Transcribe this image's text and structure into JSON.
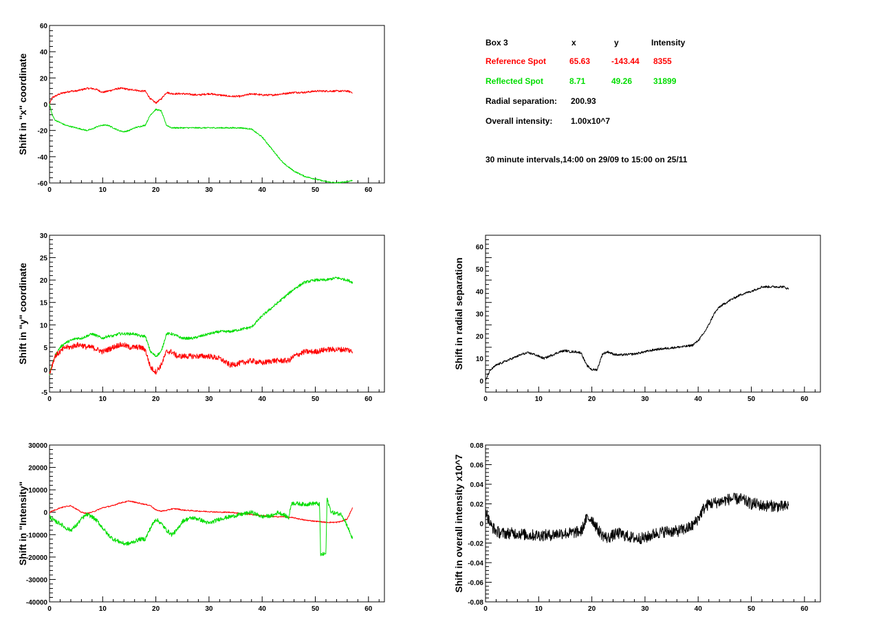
{
  "info_panel": {
    "title": "Box 3",
    "col_x": "x",
    "col_y": "y",
    "col_intensity": "Intensity",
    "reference": {
      "label": "Reference Spot",
      "x": "65.63",
      "y": "-143.44",
      "intensity": "8355",
      "color": "#ff0000"
    },
    "reflected": {
      "label": "Reflected Spot",
      "x": "8.71",
      "y": "49.26",
      "intensity": "31899",
      "color": "#00dd00"
    },
    "radial_label": "Radial separation:",
    "radial_value": "200.93",
    "overall_label": "Overall intensity:",
    "overall_value": "1.00x10^7",
    "note": "30 minute intervals,14:00 on 29/09 to 15:00 on 25/11"
  },
  "chart_data": [
    {
      "id": "x-shift",
      "type": "line",
      "ylabel": "Shift in \"x\" coordinate",
      "xlim": [
        0,
        63
      ],
      "ylim": [
        -60,
        60
      ],
      "xticks": [
        0,
        10,
        20,
        30,
        40,
        50,
        60
      ],
      "yticks": [
        -60,
        -40,
        -20,
        0,
        20,
        40,
        60
      ],
      "series": [
        {
          "color": "#ff0000",
          "noise": 0.7,
          "x": [
            0,
            0.5,
            1,
            2,
            3,
            4,
            5,
            6,
            7,
            8,
            9,
            10,
            11,
            12,
            13,
            14,
            15,
            16,
            17,
            18,
            19,
            20,
            21,
            22,
            23,
            24,
            25,
            28,
            30,
            32,
            34,
            36,
            38,
            40,
            42,
            44,
            46,
            48,
            50,
            52,
            54,
            56,
            57
          ],
          "y": [
            0,
            5,
            6,
            8,
            9,
            10,
            10,
            11,
            12,
            12,
            11,
            9,
            10,
            11,
            12,
            12,
            11,
            11,
            10,
            10,
            4,
            1,
            4,
            9,
            8,
            8,
            8,
            7,
            8,
            7,
            6,
            6,
            8,
            7,
            7,
            8,
            9,
            9,
            10,
            10,
            10,
            10,
            9
          ]
        },
        {
          "color": "#00dd00",
          "noise": 0.5,
          "x": [
            0,
            0.5,
            1,
            2,
            3,
            4,
            5,
            6,
            7,
            8,
            9,
            10,
            11,
            12,
            13,
            14,
            15,
            16,
            17,
            18,
            19,
            20,
            21,
            22,
            23,
            24,
            25,
            28,
            30,
            32,
            34,
            36,
            38,
            40,
            42,
            44,
            46,
            48,
            50,
            51,
            52,
            54,
            56,
            57
          ],
          "y": [
            0,
            -8,
            -12,
            -14,
            -16,
            -17,
            -18,
            -19,
            -20,
            -19,
            -17,
            -16,
            -16,
            -18,
            -20,
            -21,
            -20,
            -18,
            -17,
            -16,
            -8,
            -4,
            -5,
            -16,
            -18,
            -18,
            -18,
            -18,
            -18,
            -18,
            -18,
            -18,
            -19,
            -25,
            -35,
            -45,
            -51,
            -55,
            -57,
            -58,
            -59,
            -60,
            -59,
            -58
          ]
        }
      ]
    },
    {
      "id": "y-shift",
      "type": "line",
      "ylabel": "Shift in \"y\" coordinate",
      "xlim": [
        0,
        63
      ],
      "ylim": [
        -5,
        30
      ],
      "xticks": [
        0,
        10,
        20,
        30,
        40,
        50,
        60
      ],
      "yticks": [
        -5,
        0,
        5,
        10,
        15,
        20,
        25,
        30
      ],
      "series": [
        {
          "color": "#00dd00",
          "noise": 0.3,
          "x": [
            0,
            0.5,
            1,
            2,
            3,
            4,
            5,
            6,
            7,
            8,
            9,
            10,
            11,
            12,
            13,
            14,
            15,
            16,
            17,
            18,
            19,
            20,
            21,
            22,
            23,
            24,
            25,
            27,
            30,
            32,
            34,
            36,
            38,
            40,
            42,
            44,
            46,
            48,
            50,
            52,
            54,
            56,
            57
          ],
          "y": [
            -1,
            1,
            3,
            5,
            6,
            6.5,
            7,
            7,
            7.5,
            8,
            7.5,
            7,
            7.5,
            7.5,
            8,
            8,
            8,
            8,
            7.5,
            7.5,
            4,
            3,
            4,
            8,
            8,
            7.5,
            7,
            7,
            8,
            8.5,
            8.5,
            9,
            9.5,
            12,
            14,
            16,
            18,
            19.5,
            20,
            20,
            20.5,
            20,
            19.5
          ]
        },
        {
          "color": "#ff0000",
          "noise": 0.6,
          "x": [
            0,
            0.5,
            1,
            2,
            3,
            4,
            5,
            6,
            7,
            8,
            9,
            10,
            11,
            12,
            13,
            14,
            15,
            16,
            17,
            18,
            19,
            20,
            21,
            22,
            23,
            24,
            25,
            28,
            30,
            32,
            34,
            36,
            38,
            40,
            42,
            44,
            45,
            46,
            48,
            50,
            52,
            54,
            56,
            57
          ],
          "y": [
            -1,
            1,
            3,
            4,
            5,
            5,
            5.5,
            5.5,
            5,
            5,
            4.5,
            4,
            4.5,
            5,
            5.5,
            5.5,
            5,
            5,
            5,
            4.5,
            0.5,
            -0.5,
            1,
            4,
            4,
            3,
            3,
            3,
            3,
            2.5,
            1,
            1.5,
            2,
            1.5,
            2,
            2,
            2,
            3,
            4,
            4,
            4.5,
            4.5,
            4.5,
            4
          ]
        }
      ]
    },
    {
      "id": "intensity-shift",
      "type": "line",
      "ylabel": "Shift in \"Intensity\"",
      "xlim": [
        0,
        63
      ],
      "ylim": [
        -40000,
        30000
      ],
      "xticks": [
        0,
        10,
        20,
        30,
        40,
        50,
        60
      ],
      "yticks": [
        -40000,
        -30000,
        -20000,
        -10000,
        0,
        10000,
        20000,
        30000
      ],
      "series": [
        {
          "color": "#ff0000",
          "noise": 250,
          "x": [
            0,
            1,
            2,
            3,
            4,
            5,
            6,
            7,
            8,
            9,
            10,
            11,
            12,
            13,
            14,
            15,
            16,
            17,
            18,
            19,
            20,
            21,
            22,
            23,
            24,
            25,
            28,
            30,
            32,
            34,
            36,
            38,
            40,
            42,
            44,
            46,
            48,
            50,
            52,
            54,
            55,
            56,
            57
          ],
          "y": [
            0,
            1000,
            2000,
            2500,
            3000,
            1500,
            0,
            -500,
            0,
            1000,
            2000,
            2500,
            3000,
            4000,
            4500,
            5000,
            4500,
            4000,
            3500,
            3000,
            1000,
            500,
            800,
            1500,
            1500,
            1000,
            500,
            300,
            0,
            0,
            -500,
            -1000,
            -1500,
            -2000,
            -2000,
            -2500,
            -3500,
            -4000,
            -4500,
            -4500,
            -4000,
            -3000,
            2000
          ]
        },
        {
          "color": "#00dd00",
          "noise": 900,
          "x": [
            0,
            1,
            2,
            3,
            4,
            5,
            6,
            7,
            8,
            9,
            10,
            11,
            12,
            13,
            14,
            15,
            16,
            17,
            18,
            19,
            20,
            21,
            22,
            23,
            24,
            25,
            26,
            27,
            28,
            29,
            30,
            32,
            34,
            36,
            38,
            39,
            40,
            42,
            43,
            44,
            45,
            45.5,
            46,
            48,
            50,
            50.8,
            51,
            52,
            52.2,
            53,
            55,
            56,
            57
          ],
          "y": [
            -2000,
            -4000,
            -5000,
            -7000,
            -8000,
            -6000,
            -3000,
            -1000,
            -2000,
            -4000,
            -7000,
            -10000,
            -12000,
            -13000,
            -14000,
            -14000,
            -13000,
            -12000,
            -12000,
            -7000,
            -3000,
            -5000,
            -8000,
            -10000,
            -8000,
            -4000,
            -3000,
            -2500,
            -3000,
            -4000,
            -5000,
            -3000,
            -2000,
            -1000,
            0,
            -1000,
            -2000,
            -1500,
            0,
            -1000,
            -2500,
            4000,
            4000,
            3500,
            4000,
            3500,
            -19000,
            -18500,
            6000,
            0,
            -1000,
            -6000,
            -12000
          ]
        }
      ]
    },
    {
      "id": "radial-shift",
      "type": "line",
      "ylabel": "Shift in radial separation",
      "xlim": [
        0,
        63
      ],
      "ylim": [
        -5,
        65
      ],
      "xticks": [
        0,
        10,
        20,
        30,
        40,
        50,
        60
      ],
      "yticks": [
        0,
        10,
        20,
        30,
        40,
        50,
        60
      ],
      "series": [
        {
          "color": "#000000",
          "noise": 0.5,
          "x": [
            0,
            0.5,
            1,
            2,
            3,
            4,
            5,
            6,
            7,
            8,
            9,
            10,
            11,
            12,
            13,
            14,
            15,
            16,
            17,
            18,
            19,
            20,
            21,
            22,
            23,
            24,
            25,
            28,
            30,
            32,
            34,
            36,
            38,
            39,
            40,
            41,
            42,
            43,
            44,
            46,
            48,
            50,
            51,
            52,
            53,
            54,
            55,
            56,
            57
          ],
          "y": [
            0,
            3,
            5,
            7,
            8,
            9,
            10,
            11,
            12,
            12.5,
            12,
            11,
            10,
            11,
            12,
            13,
            13.5,
            13,
            13,
            12.5,
            7,
            5,
            5,
            12,
            13,
            12,
            11.5,
            12,
            13,
            14,
            14.5,
            15,
            15.5,
            16,
            18,
            21,
            25,
            30,
            33,
            36,
            38.5,
            40,
            41,
            42,
            42,
            42,
            42,
            42,
            41
          ]
        }
      ]
    },
    {
      "id": "overall-intensity-shift",
      "type": "line",
      "ylabel": "Shift in overall intensity x10^7",
      "xlim": [
        0,
        63
      ],
      "ylim": [
        -0.08,
        0.08
      ],
      "xticks": [
        0,
        10,
        20,
        30,
        40,
        50,
        60
      ],
      "yticks": [
        -0.08,
        -0.06,
        -0.04,
        -0.02,
        0,
        0.02,
        0.04,
        0.06,
        0.08
      ],
      "series": [
        {
          "color": "#000000",
          "noise": 0.006,
          "x": [
            0,
            0.5,
            1,
            2,
            3,
            4,
            6,
            8,
            10,
            12,
            14,
            16,
            18,
            19,
            20,
            21,
            22,
            23,
            24,
            25,
            26,
            28,
            30,
            32,
            34,
            36,
            38,
            39,
            40,
            41,
            42,
            44,
            46,
            48,
            50,
            51,
            52,
            54,
            56,
            57
          ],
          "y": [
            0.015,
            0.005,
            -0.002,
            -0.008,
            -0.01,
            -0.01,
            -0.01,
            -0.012,
            -0.012,
            -0.012,
            -0.01,
            -0.01,
            -0.008,
            0.005,
            0.005,
            -0.005,
            -0.012,
            -0.015,
            -0.012,
            -0.01,
            -0.012,
            -0.015,
            -0.015,
            -0.01,
            -0.008,
            -0.008,
            -0.005,
            -0.002,
            0.005,
            0.015,
            0.02,
            0.022,
            0.025,
            0.025,
            0.02,
            0.02,
            0.018,
            0.018,
            0.017,
            0.018
          ]
        }
      ]
    }
  ]
}
